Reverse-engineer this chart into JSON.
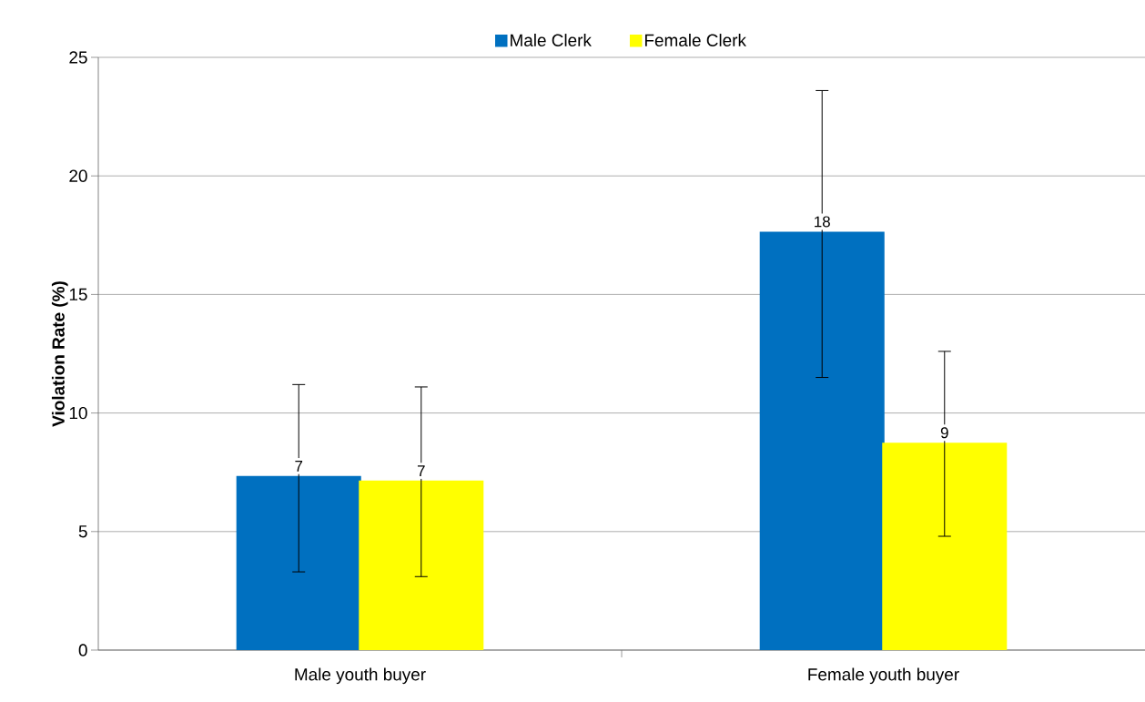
{
  "chart_data": {
    "type": "bar",
    "ylabel": "Violation Rate (%)",
    "categories": [
      "Male youth buyer",
      "Female youth buyer"
    ],
    "series": [
      {
        "name": "Male Clerk",
        "color": "#0070c0",
        "values": [
          7.3,
          17.6
        ],
        "errors": [
          [
            3.3,
            11.2
          ],
          [
            11.5,
            23.6
          ]
        ],
        "value_labels": [
          "7",
          "18"
        ]
      },
      {
        "name": "Female Clerk",
        "color": "#ffff00",
        "values": [
          7.1,
          8.7
        ],
        "errors": [
          [
            3.1,
            11.1
          ],
          [
            4.8,
            12.6
          ]
        ],
        "value_labels": [
          "7",
          "9"
        ]
      }
    ],
    "ylim": [
      0,
      25
    ],
    "yticks": [
      0,
      5,
      10,
      15,
      20,
      25
    ],
    "grid": "y",
    "legend": "top"
  }
}
